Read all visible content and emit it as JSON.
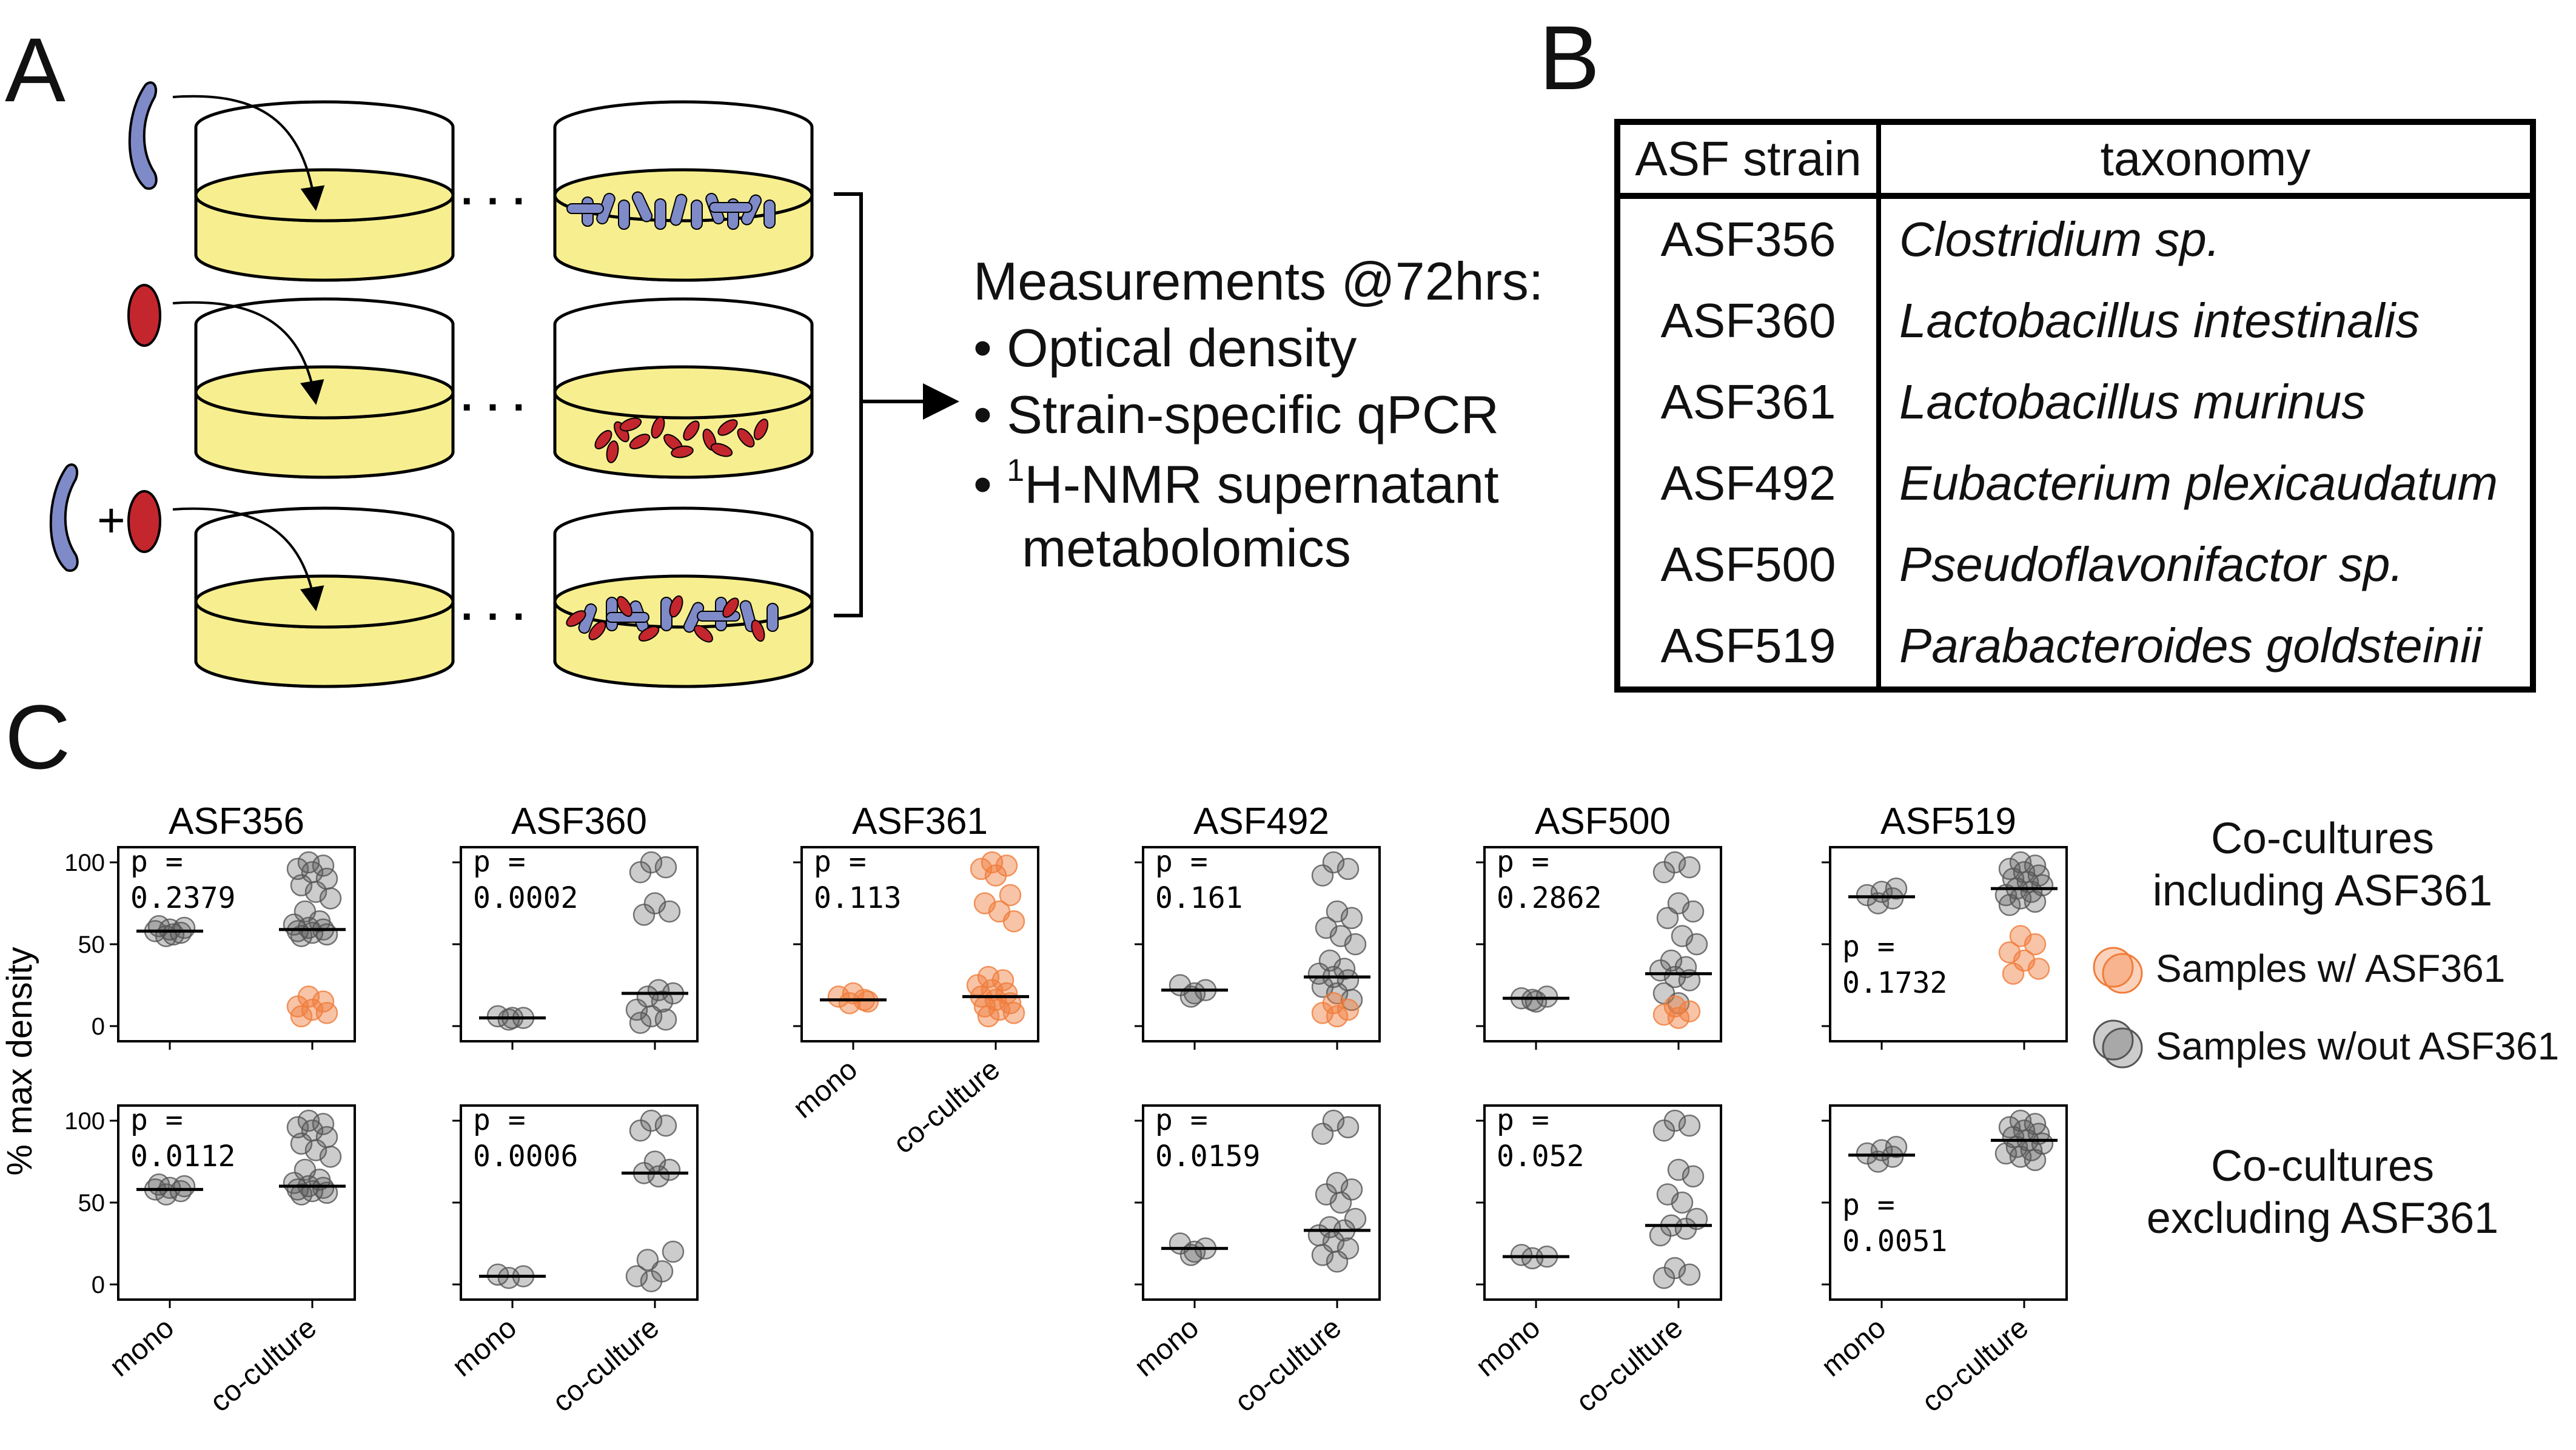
{
  "panel_labels": {
    "a": "A",
    "b": "B",
    "c": "C"
  },
  "panel_a": {
    "dots": "· · ·",
    "plus": "+",
    "measurements_title": "Measurements @72hrs:",
    "bullets": [
      {
        "bullet": "•",
        "text": "Optical density"
      },
      {
        "bullet": "•",
        "text": "Strain-specific qPCR"
      },
      {
        "bullet": "•",
        "sup": "1",
        "text": "H-NMR supernatant"
      },
      {
        "bullet": "",
        "text": "metabolomics"
      }
    ]
  },
  "panel_b": {
    "headers": [
      "ASF strain",
      "taxonomy"
    ],
    "rows": [
      [
        "ASF356",
        "Clostridium sp."
      ],
      [
        "ASF360",
        "Lactobacillus intestinalis"
      ],
      [
        "ASF361",
        "Lactobacillus murinus"
      ],
      [
        "ASF492",
        "Eubacterium plexicaudatum"
      ],
      [
        "ASF500",
        "Pseudoflavonifactor sp."
      ],
      [
        "ASF519",
        "Parabacteroides goldsteinii"
      ]
    ]
  },
  "panel_c": {
    "ylabel": "% max density",
    "x_categories": [
      "mono",
      "co-culture"
    ],
    "yticks": [
      0,
      50,
      100
    ],
    "row_labels": [
      "Co-cultures\nincluding ASF361",
      "Co-cultures\nexcluding ASF361"
    ],
    "legend": [
      {
        "label": "Samples w/ ASF361",
        "color": "#f07d3c"
      },
      {
        "label": "Samples w/out ASF361",
        "color": "#555555"
      }
    ],
    "colors": {
      "with_asf361": "#f07d3c",
      "without_asf361": "#555555",
      "median": "#000000"
    }
  },
  "chart_data": [
    {
      "type": "scatter",
      "title": "ASF356",
      "row": "including ASF361",
      "categories": [
        "mono",
        "co-culture"
      ],
      "ylim": [
        0,
        100
      ],
      "p_label": "p =",
      "p_value": "0.2379",
      "median": {
        "mono": 58,
        "co-culture": 59
      },
      "series": [
        {
          "name": "Samples w/out ASF361",
          "mono": [
            55,
            57,
            58,
            59,
            60,
            61,
            56
          ],
          "co-culture": [
            100,
            98,
            96,
            94,
            90,
            86,
            82,
            78,
            70,
            64,
            62,
            60,
            59,
            58,
            57,
            56,
            55
          ]
        },
        {
          "name": "Samples w/ ASF361",
          "mono": [],
          "co-culture": [
            18,
            15,
            12,
            10,
            8,
            6
          ]
        }
      ]
    },
    {
      "type": "scatter",
      "title": "ASF360",
      "row": "including ASF361",
      "categories": [
        "mono",
        "co-culture"
      ],
      "ylim": [
        0,
        100
      ],
      "p_label": "p =",
      "p_value": "0.0002",
      "median": {
        "mono": 5,
        "co-culture": 20
      },
      "series": [
        {
          "name": "Samples w/out ASF361",
          "mono": [
            4,
            5,
            6,
            5
          ],
          "co-culture": [
            100,
            97,
            94,
            75,
            70,
            68,
            22,
            20,
            18,
            15,
            10,
            6,
            4,
            2
          ]
        },
        {
          "name": "Samples w/ ASF361",
          "mono": [],
          "co-culture": []
        }
      ]
    },
    {
      "type": "scatter",
      "title": "ASF361",
      "row": "including ASF361",
      "categories": [
        "mono",
        "co-culture"
      ],
      "ylim": [
        0,
        100
      ],
      "p_label": "p =",
      "p_value": "0.113",
      "median": {
        "mono": 16,
        "co-culture": 18
      },
      "series": [
        {
          "name": "Samples w/out ASF361",
          "mono": [],
          "co-culture": []
        },
        {
          "name": "Samples w/ ASF361",
          "mono": [
            14,
            16,
            18,
            20,
            15
          ],
          "co-culture": [
            100,
            98,
            96,
            92,
            80,
            75,
            70,
            64,
            30,
            28,
            25,
            22,
            20,
            18,
            16,
            14,
            12,
            10,
            8,
            6
          ]
        }
      ]
    },
    {
      "type": "scatter",
      "title": "ASF492",
      "row": "including ASF361",
      "categories": [
        "mono",
        "co-culture"
      ],
      "ylim": [
        0,
        100
      ],
      "p_label": "p =",
      "p_value": "0.161",
      "median": {
        "mono": 22,
        "co-culture": 30
      },
      "series": [
        {
          "name": "Samples w/out ASF361",
          "mono": [
            18,
            22,
            25,
            20
          ],
          "co-culture": [
            100,
            96,
            92,
            70,
            66,
            60,
            55,
            50,
            40,
            35,
            32,
            30,
            28,
            24,
            20,
            16
          ]
        },
        {
          "name": "Samples w/ ASF361",
          "mono": [],
          "co-culture": [
            14,
            10,
            8,
            6
          ]
        }
      ]
    },
    {
      "type": "scatter",
      "title": "ASF500",
      "row": "including ASF361",
      "categories": [
        "mono",
        "co-culture"
      ],
      "ylim": [
        0,
        100
      ],
      "p_label": "p =",
      "p_value": "0.2862",
      "median": {
        "mono": 17,
        "co-culture": 32
      },
      "series": [
        {
          "name": "Samples w/out ASF361",
          "mono": [
            16,
            18,
            17,
            15
          ],
          "co-culture": [
            100,
            97,
            94,
            75,
            70,
            66,
            55,
            50,
            40,
            36,
            34,
            30,
            28,
            20,
            14
          ]
        },
        {
          "name": "Samples w/ ASF361",
          "mono": [],
          "co-culture": [
            12,
            9,
            7,
            5
          ]
        }
      ]
    },
    {
      "type": "scatter",
      "title": "ASF519",
      "row": "including ASF361",
      "categories": [
        "mono",
        "co-culture"
      ],
      "ylim": [
        0,
        100
      ],
      "p_label": "p =",
      "p_value": "0.1732",
      "median": {
        "mono": 79,
        "co-culture": 84
      },
      "series": [
        {
          "name": "Samples w/out ASF361",
          "mono": [
            75,
            78,
            80,
            82,
            84
          ],
          "co-culture": [
            100,
            98,
            96,
            94,
            92,
            90,
            88,
            86,
            84,
            82,
            80,
            78,
            76,
            74
          ]
        },
        {
          "name": "Samples w/ ASF361",
          "mono": [],
          "co-culture": [
            55,
            50,
            45,
            40,
            35,
            32
          ]
        }
      ]
    },
    {
      "type": "scatter",
      "title": "ASF356",
      "row": "excluding ASF361",
      "categories": [
        "mono",
        "co-culture"
      ],
      "ylim": [
        0,
        100
      ],
      "p_label": "p =",
      "p_value": "0.0112",
      "median": {
        "mono": 58,
        "co-culture": 60
      },
      "series": [
        {
          "name": "Samples w/out ASF361",
          "mono": [
            55,
            57,
            58,
            59,
            60,
            61
          ],
          "co-culture": [
            100,
            98,
            96,
            94,
            90,
            86,
            82,
            78,
            70,
            64,
            62,
            60,
            59,
            58,
            57,
            56,
            55
          ]
        }
      ]
    },
    {
      "type": "scatter",
      "title": "ASF360",
      "row": "excluding ASF361",
      "categories": [
        "mono",
        "co-culture"
      ],
      "ylim": [
        0,
        100
      ],
      "p_label": "p =",
      "p_value": "0.0006",
      "median": {
        "mono": 5,
        "co-culture": 68
      },
      "series": [
        {
          "name": "Samples w/out ASF361",
          "mono": [
            4,
            5,
            6
          ],
          "co-culture": [
            100,
            97,
            94,
            75,
            70,
            68,
            66,
            20,
            15,
            8,
            5,
            2
          ]
        }
      ]
    },
    {
      "type": "scatter",
      "title": "ASF492",
      "row": "excluding ASF361",
      "categories": [
        "mono",
        "co-culture"
      ],
      "ylim": [
        0,
        100
      ],
      "p_label": "p =",
      "p_value": "0.0159",
      "median": {
        "mono": 22,
        "co-culture": 33
      },
      "series": [
        {
          "name": "Samples w/out ASF361",
          "mono": [
            18,
            22,
            25,
            20
          ],
          "co-culture": [
            100,
            96,
            92,
            62,
            58,
            55,
            50,
            40,
            35,
            33,
            30,
            26,
            22,
            18,
            14
          ]
        }
      ]
    },
    {
      "type": "scatter",
      "title": "ASF500",
      "row": "excluding ASF361",
      "categories": [
        "mono",
        "co-culture"
      ],
      "ylim": [
        0,
        100
      ],
      "p_label": "p =",
      "p_value": "0.052",
      "median": {
        "mono": 17,
        "co-culture": 36
      },
      "series": [
        {
          "name": "Samples w/out ASF361",
          "mono": [
            16,
            17,
            18
          ],
          "co-culture": [
            100,
            97,
            94,
            70,
            66,
            55,
            50,
            40,
            36,
            34,
            30,
            10,
            6,
            4
          ]
        }
      ]
    },
    {
      "type": "scatter",
      "title": "ASF519",
      "row": "excluding ASF361",
      "categories": [
        "mono",
        "co-culture"
      ],
      "ylim": [
        0,
        100
      ],
      "p_label": "p =",
      "p_value": "0.0051",
      "median": {
        "mono": 79,
        "co-culture": 88
      },
      "series": [
        {
          "name": "Samples w/out ASF361",
          "mono": [
            75,
            78,
            80,
            82,
            84
          ],
          "co-culture": [
            100,
            98,
            96,
            94,
            92,
            90,
            88,
            86,
            84,
            82,
            80,
            78,
            76
          ]
        }
      ]
    }
  ]
}
